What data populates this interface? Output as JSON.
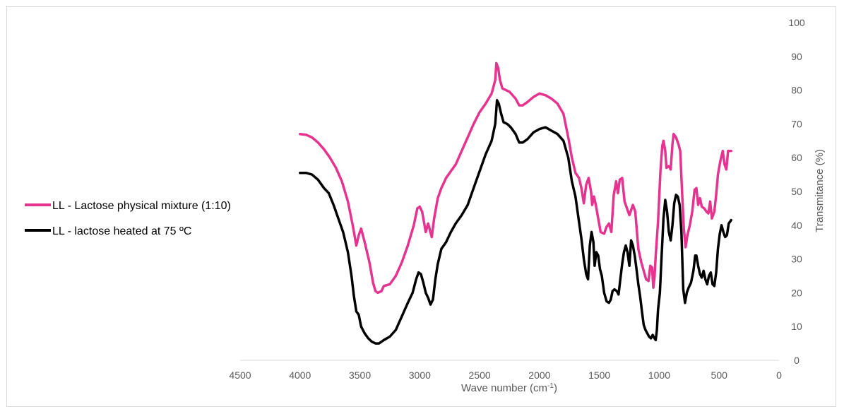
{
  "chart_data": {
    "type": "line",
    "title": "",
    "xlabel": "Wave number (cm",
    "xlabel_sup": "-1",
    "xlabel_end": ")",
    "ylabel": "Transmitance (%)",
    "xlim": [
      4500,
      0
    ],
    "ylim": [
      0,
      100
    ],
    "x_ticks": [
      4500,
      4000,
      3500,
      3000,
      2500,
      2000,
      1500,
      1000,
      500,
      0
    ],
    "y_ticks": [
      0,
      10,
      20,
      30,
      40,
      50,
      60,
      70,
      80,
      90,
      100
    ],
    "grid": false,
    "legend_position": "left",
    "y_axis_side": "right",
    "series": [
      {
        "name": "LL - Lactose physical mixture (1:10)",
        "color": "#e6338f",
        "points": [
          [
            4000,
            67
          ],
          [
            3950,
            66.8
          ],
          [
            3900,
            66
          ],
          [
            3850,
            64.5
          ],
          [
            3800,
            62.5
          ],
          [
            3750,
            60
          ],
          [
            3700,
            57
          ],
          [
            3650,
            53
          ],
          [
            3600,
            47
          ],
          [
            3560,
            40
          ],
          [
            3530,
            34
          ],
          [
            3510,
            37
          ],
          [
            3490,
            39
          ],
          [
            3460,
            35
          ],
          [
            3420,
            29
          ],
          [
            3390,
            23
          ],
          [
            3370,
            20.5
          ],
          [
            3350,
            20
          ],
          [
            3320,
            20.5
          ],
          [
            3300,
            22
          ],
          [
            3250,
            22.5
          ],
          [
            3200,
            25
          ],
          [
            3150,
            29
          ],
          [
            3100,
            34
          ],
          [
            3050,
            40
          ],
          [
            3020,
            45
          ],
          [
            3000,
            45.5
          ],
          [
            2980,
            44
          ],
          [
            2950,
            38
          ],
          [
            2930,
            40.5
          ],
          [
            2900,
            36.5
          ],
          [
            2880,
            42
          ],
          [
            2850,
            48
          ],
          [
            2820,
            51
          ],
          [
            2780,
            54
          ],
          [
            2740,
            56
          ],
          [
            2700,
            58
          ],
          [
            2650,
            62
          ],
          [
            2600,
            66
          ],
          [
            2550,
            70
          ],
          [
            2500,
            73.5
          ],
          [
            2450,
            76
          ],
          [
            2400,
            79
          ],
          [
            2370,
            83
          ],
          [
            2360,
            88
          ],
          [
            2345,
            86.5
          ],
          [
            2330,
            83
          ],
          [
            2310,
            80.5
          ],
          [
            2280,
            80
          ],
          [
            2250,
            79.5
          ],
          [
            2200,
            77.5
          ],
          [
            2170,
            75.5
          ],
          [
            2140,
            75.5
          ],
          [
            2100,
            76.5
          ],
          [
            2050,
            78
          ],
          [
            2000,
            79
          ],
          [
            1950,
            78.5
          ],
          [
            1900,
            77.5
          ],
          [
            1850,
            76
          ],
          [
            1800,
            73
          ],
          [
            1760,
            66
          ],
          [
            1730,
            60
          ],
          [
            1700,
            55.5
          ],
          [
            1670,
            54
          ],
          [
            1650,
            51
          ],
          [
            1630,
            46.5
          ],
          [
            1610,
            52
          ],
          [
            1590,
            54
          ],
          [
            1570,
            50
          ],
          [
            1560,
            46
          ],
          [
            1545,
            48.5
          ],
          [
            1530,
            46
          ],
          [
            1510,
            42
          ],
          [
            1490,
            38
          ],
          [
            1460,
            37.5
          ],
          [
            1440,
            39.5
          ],
          [
            1420,
            40.5
          ],
          [
            1400,
            38
          ],
          [
            1380,
            49
          ],
          [
            1360,
            53
          ],
          [
            1345,
            49.5
          ],
          [
            1330,
            53.5
          ],
          [
            1310,
            54
          ],
          [
            1290,
            47
          ],
          [
            1270,
            45
          ],
          [
            1250,
            43
          ],
          [
            1220,
            46
          ],
          [
            1200,
            44
          ],
          [
            1175,
            33
          ],
          [
            1150,
            29
          ],
          [
            1130,
            26.5
          ],
          [
            1110,
            24
          ],
          [
            1090,
            23.5
          ],
          [
            1075,
            28
          ],
          [
            1060,
            27.5
          ],
          [
            1050,
            21.5
          ],
          [
            1040,
            24.5
          ],
          [
            1030,
            31
          ],
          [
            1010,
            41
          ],
          [
            990,
            56
          ],
          [
            975,
            63.5
          ],
          [
            965,
            65
          ],
          [
            950,
            62
          ],
          [
            940,
            57
          ],
          [
            920,
            57.5
          ],
          [
            905,
            56.5
          ],
          [
            890,
            64
          ],
          [
            880,
            67
          ],
          [
            860,
            66
          ],
          [
            840,
            64
          ],
          [
            825,
            62
          ],
          [
            810,
            50
          ],
          [
            795,
            39
          ],
          [
            780,
            33.5
          ],
          [
            765,
            37
          ],
          [
            745,
            40
          ],
          [
            725,
            44
          ],
          [
            705,
            50.5
          ],
          [
            690,
            51
          ],
          [
            675,
            46
          ],
          [
            660,
            48
          ],
          [
            645,
            45.5
          ],
          [
            625,
            45
          ],
          [
            605,
            44
          ],
          [
            590,
            43.5
          ],
          [
            575,
            47
          ],
          [
            560,
            42
          ],
          [
            540,
            44
          ],
          [
            525,
            49
          ],
          [
            510,
            55
          ],
          [
            490,
            59
          ],
          [
            470,
            62
          ],
          [
            455,
            58
          ],
          [
            440,
            56.5
          ],
          [
            425,
            62
          ],
          [
            400,
            62
          ]
        ]
      },
      {
        "name": "LL - lactose heated at 75 ºC",
        "color": "#000000",
        "points": [
          [
            4000,
            55.5
          ],
          [
            3950,
            55.5
          ],
          [
            3900,
            55
          ],
          [
            3850,
            53.5
          ],
          [
            3800,
            51
          ],
          [
            3760,
            49.5
          ],
          [
            3720,
            46
          ],
          [
            3680,
            42
          ],
          [
            3640,
            38
          ],
          [
            3600,
            32
          ],
          [
            3570,
            25
          ],
          [
            3550,
            19
          ],
          [
            3530,
            14.5
          ],
          [
            3510,
            13.5
          ],
          [
            3490,
            10
          ],
          [
            3460,
            8
          ],
          [
            3430,
            6.5
          ],
          [
            3400,
            5.5
          ],
          [
            3370,
            5
          ],
          [
            3340,
            5
          ],
          [
            3300,
            6
          ],
          [
            3250,
            7
          ],
          [
            3200,
            9
          ],
          [
            3150,
            13
          ],
          [
            3100,
            17
          ],
          [
            3060,
            20
          ],
          [
            3030,
            24
          ],
          [
            3010,
            26
          ],
          [
            2990,
            25.5
          ],
          [
            2970,
            23
          ],
          [
            2950,
            20
          ],
          [
            2930,
            18.5
          ],
          [
            2910,
            16.5
          ],
          [
            2890,
            18
          ],
          [
            2870,
            24
          ],
          [
            2850,
            28.5
          ],
          [
            2820,
            33
          ],
          [
            2780,
            35
          ],
          [
            2740,
            38
          ],
          [
            2700,
            40.5
          ],
          [
            2650,
            43
          ],
          [
            2600,
            46
          ],
          [
            2550,
            51
          ],
          [
            2500,
            56
          ],
          [
            2450,
            61
          ],
          [
            2400,
            65
          ],
          [
            2370,
            70
          ],
          [
            2355,
            77
          ],
          [
            2340,
            76
          ],
          [
            2320,
            73
          ],
          [
            2300,
            70.5
          ],
          [
            2270,
            70
          ],
          [
            2240,
            69
          ],
          [
            2200,
            67
          ],
          [
            2170,
            64.5
          ],
          [
            2140,
            64.5
          ],
          [
            2100,
            65.5
          ],
          [
            2050,
            67.5
          ],
          [
            2000,
            68.5
          ],
          [
            1950,
            69
          ],
          [
            1900,
            68
          ],
          [
            1850,
            67
          ],
          [
            1800,
            65
          ],
          [
            1760,
            60
          ],
          [
            1730,
            53
          ],
          [
            1700,
            48.5
          ],
          [
            1670,
            41
          ],
          [
            1650,
            36
          ],
          [
            1630,
            30
          ],
          [
            1610,
            25.5
          ],
          [
            1595,
            24
          ],
          [
            1580,
            34
          ],
          [
            1565,
            38
          ],
          [
            1550,
            35
          ],
          [
            1540,
            28
          ],
          [
            1525,
            32
          ],
          [
            1510,
            31
          ],
          [
            1495,
            27
          ],
          [
            1480,
            25
          ],
          [
            1460,
            20
          ],
          [
            1440,
            17.5
          ],
          [
            1420,
            17
          ],
          [
            1405,
            18
          ],
          [
            1390,
            20.5
          ],
          [
            1375,
            21
          ],
          [
            1355,
            20.5
          ],
          [
            1340,
            19.5
          ],
          [
            1325,
            24
          ],
          [
            1310,
            28.5
          ],
          [
            1295,
            32
          ],
          [
            1280,
            34
          ],
          [
            1265,
            32
          ],
          [
            1250,
            28
          ],
          [
            1235,
            35.5
          ],
          [
            1220,
            34
          ],
          [
            1205,
            31
          ],
          [
            1190,
            27
          ],
          [
            1175,
            22.5
          ],
          [
            1160,
            19
          ],
          [
            1145,
            14.5
          ],
          [
            1130,
            10.5
          ],
          [
            1115,
            9
          ],
          [
            1100,
            8
          ],
          [
            1085,
            7
          ],
          [
            1070,
            6.5
          ],
          [
            1055,
            7.5
          ],
          [
            1040,
            6.5
          ],
          [
            1030,
            6
          ],
          [
            1020,
            9
          ],
          [
            1010,
            15
          ],
          [
            995,
            20
          ],
          [
            980,
            31
          ],
          [
            965,
            42
          ],
          [
            950,
            47.5
          ],
          [
            935,
            44
          ],
          [
            920,
            38
          ],
          [
            905,
            35.5
          ],
          [
            890,
            40
          ],
          [
            875,
            46.5
          ],
          [
            860,
            49
          ],
          [
            845,
            48.5
          ],
          [
            830,
            46
          ],
          [
            815,
            38
          ],
          [
            800,
            21
          ],
          [
            785,
            17
          ],
          [
            770,
            20
          ],
          [
            755,
            21.5
          ],
          [
            735,
            23
          ],
          [
            715,
            26.5
          ],
          [
            700,
            31
          ],
          [
            690,
            31
          ],
          [
            675,
            28
          ],
          [
            660,
            25.5
          ],
          [
            645,
            24.5
          ],
          [
            630,
            26.5
          ],
          [
            615,
            24
          ],
          [
            600,
            22.5
          ],
          [
            585,
            25
          ],
          [
            570,
            26
          ],
          [
            555,
            22.5
          ],
          [
            540,
            22
          ],
          [
            525,
            26
          ],
          [
            510,
            33
          ],
          [
            495,
            37.5
          ],
          [
            480,
            40
          ],
          [
            465,
            38
          ],
          [
            450,
            36.5
          ],
          [
            435,
            37
          ],
          [
            420,
            40.5
          ],
          [
            400,
            41.5
          ]
        ]
      }
    ]
  }
}
